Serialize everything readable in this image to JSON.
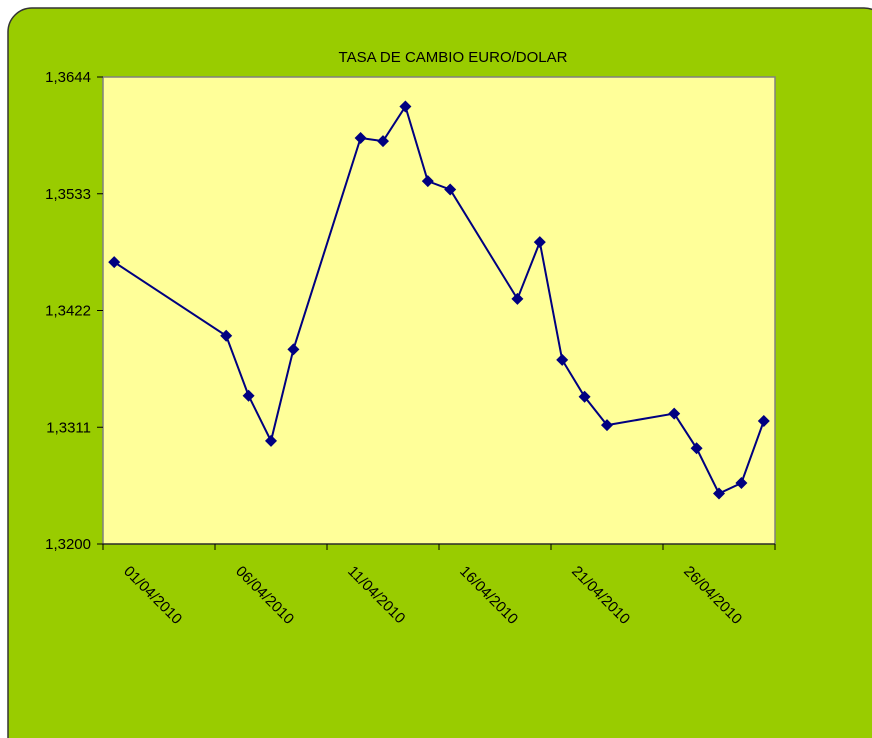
{
  "chart_data": {
    "type": "line",
    "title": "TASA DE CAMBIO EURO/DOLAR",
    "x": [
      "01/04/2010",
      "06/04/2010",
      "07/04/2010",
      "08/04/2010",
      "09/04/2010",
      "12/04/2010",
      "13/04/2010",
      "14/04/2010",
      "15/04/2010",
      "16/04/2010",
      "19/04/2010",
      "20/04/2010",
      "21/04/2010",
      "22/04/2010",
      "23/04/2010",
      "26/04/2010",
      "27/04/2010",
      "28/04/2010",
      "29/04/2010",
      "30/04/2010"
    ],
    "xlim": [
      "01/04/2010",
      "30/04/2010"
    ],
    "xticks": [
      "01/04/2010",
      "06/04/2010",
      "11/04/2010",
      "16/04/2010",
      "21/04/2010",
      "26/04/2010"
    ],
    "series": [
      {
        "color": "#000080",
        "values": [
          1.3468,
          1.3398,
          1.3341,
          1.3298,
          1.3385,
          1.3586,
          1.3583,
          1.3616,
          1.3545,
          1.3537,
          1.3433,
          1.3487,
          1.3375,
          1.334,
          1.3313,
          1.3324,
          1.3291,
          1.3248,
          1.3258,
          1.3317
        ]
      }
    ],
    "ylim": [
      1.32,
      1.3644
    ],
    "yticks": [
      {
        "value": 1.32,
        "label": "1,3200"
      },
      {
        "value": 1.3311,
        "label": "1,3311"
      },
      {
        "value": 1.3422,
        "label": "1,3422"
      },
      {
        "value": 1.3533,
        "label": "1,3533"
      },
      {
        "value": 1.3644,
        "label": "1,3644"
      }
    ]
  }
}
